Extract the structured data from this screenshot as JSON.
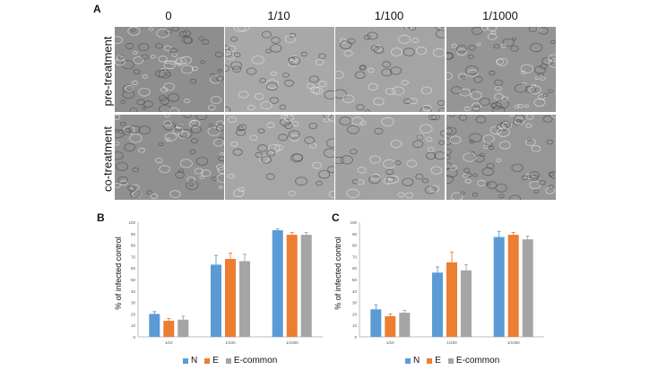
{
  "panel_a": {
    "letter": "A",
    "columns": [
      "0",
      "1/10",
      "1/100",
      "1/1000"
    ],
    "rows": [
      "pre-treatment",
      "co-treatment"
    ],
    "image_tones": [
      [
        "#8e8e8e",
        "#a8a8a8",
        "#a4a4a4",
        "#959595"
      ],
      [
        "#909090",
        "#a6a6a6",
        "#a2a2a2",
        "#969696"
      ]
    ]
  },
  "panel_b": {
    "letter": "B"
  },
  "panel_c": {
    "letter": "C"
  },
  "colors": {
    "N": "#5b9bd5",
    "E": "#ed7d31",
    "E-common": "#a5a5a5",
    "axis": "#bfbfbf"
  },
  "chart_data": [
    {
      "type": "bar",
      "ylabel": "% of infected control",
      "ylim": [
        0,
        100
      ],
      "yticks": [
        0,
        10,
        20,
        30,
        40,
        50,
        60,
        70,
        80,
        90,
        100
      ],
      "categories": [
        "1/10",
        "1/100",
        "1/1000"
      ],
      "series": [
        {
          "name": "N",
          "values": [
            20,
            63,
            93
          ],
          "errors": [
            2,
            8,
            1
          ]
        },
        {
          "name": "E",
          "values": [
            14,
            68,
            89
          ],
          "errors": [
            2,
            5,
            2
          ]
        },
        {
          "name": "E-common",
          "values": [
            15,
            66,
            89
          ],
          "errors": [
            3,
            6,
            2
          ]
        }
      ],
      "legend": "bottom"
    },
    {
      "type": "bar",
      "ylabel": "% of infected control",
      "ylim": [
        0,
        100
      ],
      "yticks": [
        0,
        10,
        20,
        30,
        40,
        50,
        60,
        70,
        80,
        90,
        100
      ],
      "categories": [
        "1/10",
        "1/100",
        "1/1000"
      ],
      "series": [
        {
          "name": "N",
          "values": [
            24,
            56,
            87
          ],
          "errors": [
            4,
            5,
            5
          ]
        },
        {
          "name": "E",
          "values": [
            18,
            65,
            89
          ],
          "errors": [
            2,
            9,
            2
          ]
        },
        {
          "name": "E-common",
          "values": [
            21,
            58,
            85
          ],
          "errors": [
            2,
            5,
            3
          ]
        }
      ],
      "legend": "bottom"
    }
  ]
}
